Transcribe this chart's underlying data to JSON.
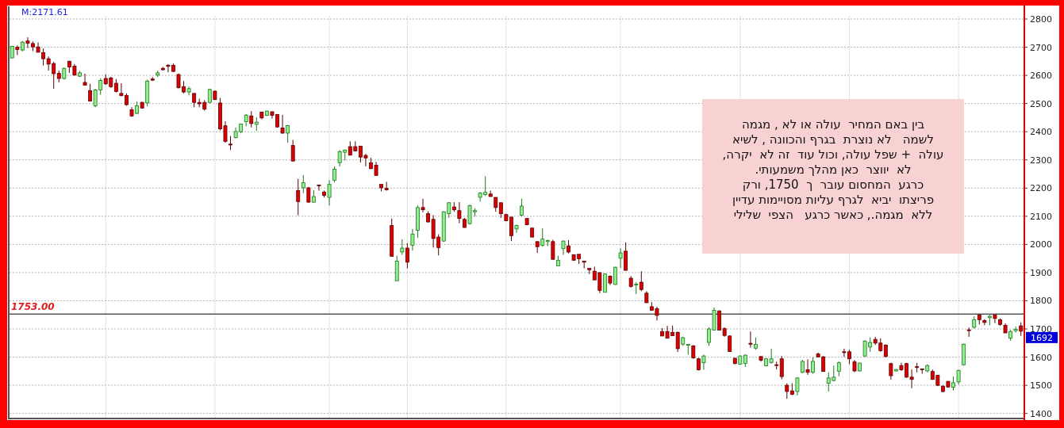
{
  "chart_data": {
    "type": "candlestick",
    "categories": [
      null,
      null,
      null,
      null,
      null,
      null,
      null,
      null,
      null,
      null,
      null,
      null,
      null,
      null,
      null,
      null,
      null,
      null,
      null,
      null,
      null,
      null,
      null,
      null,
      null,
      null,
      null,
      null,
      null,
      null,
      null,
      null,
      null,
      null,
      null,
      null,
      null,
      null,
      null,
      null,
      null,
      null,
      null,
      null,
      null,
      null,
      null,
      null,
      null,
      null,
      null,
      null,
      null,
      null,
      null,
      null,
      null,
      null,
      null,
      null,
      null,
      null,
      null,
      null,
      null,
      null,
      null,
      null,
      null,
      null,
      null,
      null,
      null,
      null,
      null,
      null,
      null,
      null,
      null,
      null,
      null,
      null,
      null,
      null,
      null,
      null,
      null,
      null,
      null,
      null,
      null,
      null,
      null,
      null,
      null,
      null,
      null,
      null,
      null,
      null,
      null,
      null,
      null,
      null,
      null,
      null,
      null,
      null,
      null,
      null,
      null,
      null,
      null,
      null,
      null,
      null,
      null,
      null,
      null,
      null,
      null,
      null,
      null,
      null,
      null,
      null,
      null,
      null,
      null,
      null,
      null,
      null,
      null,
      null,
      null,
      null,
      null,
      null,
      null,
      null,
      null,
      null,
      null,
      null,
      null,
      null,
      null,
      null,
      null,
      null,
      null,
      null,
      null,
      null,
      null,
      null,
      null,
      null,
      null,
      null,
      null,
      null,
      null,
      null,
      null,
      null,
      null,
      null,
      null,
      null,
      null,
      null,
      null,
      null,
      null,
      null,
      null,
      null,
      null,
      null,
      null,
      null,
      null,
      null,
      null,
      null,
      null,
      null,
      null,
      null,
      null,
      null,
      null,
      null,
      null
    ],
    "ohlc": [
      [
        2662,
        2705,
        2660,
        2703
      ],
      [
        2700,
        2706,
        2672,
        2692
      ],
      [
        2690,
        2722,
        2685,
        2718
      ],
      [
        2722,
        2735,
        2697,
        2714
      ],
      [
        2713,
        2720,
        2686,
        2701
      ],
      [
        2701,
        2717,
        2682,
        2682
      ],
      [
        2681,
        2696,
        2635,
        2659
      ],
      [
        2659,
        2667,
        2617,
        2640
      ],
      [
        2642,
        2648,
        2552,
        2606
      ],
      [
        2607,
        2617,
        2575,
        2589
      ],
      [
        2589,
        2628,
        2585,
        2625
      ],
      [
        2650,
        2652,
        2609,
        2630
      ],
      [
        2633,
        2640,
        2599,
        2601
      ],
      [
        2597,
        2616,
        2594,
        2609
      ],
      [
        2575,
        2606,
        2565,
        2565
      ],
      [
        2546,
        2570,
        2507,
        2509
      ],
      [
        2492,
        2552,
        2487,
        2548
      ],
      [
        2548,
        2589,
        2531,
        2582
      ],
      [
        2589,
        2604,
        2566,
        2570
      ],
      [
        2591,
        2595,
        2556,
        2560
      ],
      [
        2572,
        2587,
        2539,
        2543
      ],
      [
        2536,
        2572,
        2526,
        2528
      ],
      [
        2529,
        2536,
        2492,
        2496
      ],
      [
        2478,
        2487,
        2453,
        2456
      ],
      [
        2465,
        2507,
        2463,
        2492
      ],
      [
        2504,
        2507,
        2482,
        2484
      ],
      [
        2502,
        2585,
        2490,
        2580
      ],
      [
        2587,
        2594,
        2580,
        2583
      ],
      [
        2601,
        2617,
        2594,
        2609
      ],
      [
        2625,
        2630,
        2617,
        2620
      ],
      [
        2636,
        2640,
        2611,
        2632
      ],
      [
        2636,
        2642,
        2612,
        2614
      ],
      [
        2603,
        2607,
        2554,
        2556
      ],
      [
        2560,
        2580,
        2536,
        2541
      ],
      [
        2541,
        2560,
        2529,
        2553
      ],
      [
        2536,
        2536,
        2487,
        2504
      ],
      [
        2504,
        2517,
        2487,
        2499
      ],
      [
        2504,
        2512,
        2475,
        2480
      ],
      [
        2504,
        2553,
        2501,
        2550
      ],
      [
        2544,
        2546,
        2513,
        2514
      ],
      [
        2502,
        2520,
        2405,
        2410
      ],
      [
        2421,
        2437,
        2361,
        2366
      ],
      [
        2356,
        2385,
        2335,
        2353
      ],
      [
        2379,
        2415,
        2376,
        2401
      ],
      [
        2400,
        2429,
        2395,
        2427
      ],
      [
        2436,
        2463,
        2419,
        2459
      ],
      [
        2456,
        2473,
        2415,
        2429
      ],
      [
        2426,
        2451,
        2403,
        2434
      ],
      [
        2470,
        2470,
        2444,
        2449
      ],
      [
        2458,
        2475,
        2456,
        2473
      ],
      [
        2471,
        2471,
        2447,
        2458
      ],
      [
        2461,
        2463,
        2414,
        2417
      ],
      [
        2413,
        2460,
        2393,
        2395
      ],
      [
        2395,
        2424,
        2361,
        2422
      ],
      [
        2351,
        2371,
        2295,
        2296
      ],
      [
        2191,
        2233,
        2104,
        2152
      ],
      [
        2201,
        2246,
        2182,
        2219
      ],
      [
        2201,
        2204,
        2148,
        2150
      ],
      [
        2150,
        2193,
        2148,
        2170
      ],
      [
        2211,
        2211,
        2191,
        2208
      ],
      [
        2186,
        2191,
        2167,
        2174
      ],
      [
        2167,
        2228,
        2138,
        2213
      ],
      [
        2228,
        2277,
        2220,
        2267
      ],
      [
        2290,
        2335,
        2277,
        2329
      ],
      [
        2327,
        2337,
        2298,
        2335
      ],
      [
        2347,
        2366,
        2315,
        2317
      ],
      [
        2347,
        2366,
        2330,
        2332
      ],
      [
        2349,
        2349,
        2291,
        2310
      ],
      [
        2316,
        2322,
        2277,
        2307
      ],
      [
        2290,
        2307,
        2267,
        2269
      ],
      [
        2281,
        2293,
        2243,
        2245
      ],
      [
        2213,
        2213,
        2188,
        2201
      ],
      [
        2199,
        2222,
        2191,
        2194
      ],
      [
        2067,
        2092,
        1958,
        1958
      ],
      [
        1871,
        1960,
        1871,
        1941
      ],
      [
        1973,
        2018,
        1963,
        1987
      ],
      [
        1987,
        2004,
        1915,
        1937
      ],
      [
        1997,
        2055,
        1978,
        2036
      ],
      [
        2050,
        2138,
        2024,
        2131
      ],
      [
        2131,
        2162,
        2114,
        2123
      ],
      [
        2109,
        2118,
        2077,
        2080
      ],
      [
        2089,
        2104,
        1989,
        2021
      ],
      [
        2026,
        2036,
        1961,
        1989
      ],
      [
        2012,
        2118,
        2009,
        2116
      ],
      [
        2109,
        2150,
        2094,
        2148
      ],
      [
        2133,
        2150,
        2116,
        2123
      ],
      [
        2120,
        2150,
        2075,
        2092
      ],
      [
        2089,
        2094,
        2060,
        2060
      ],
      [
        2074,
        2141,
        2070,
        2138
      ],
      [
        2116,
        2128,
        2099,
        2120
      ],
      [
        2167,
        2186,
        2152,
        2182
      ],
      [
        2177,
        2242,
        2172,
        2185
      ],
      [
        2179,
        2191,
        2170,
        2170
      ],
      [
        2167,
        2167,
        2116,
        2131
      ],
      [
        2148,
        2148,
        2094,
        2109
      ],
      [
        2106,
        2109,
        2082,
        2084
      ],
      [
        2097,
        2097,
        2012,
        2031
      ],
      [
        2055,
        2070,
        2041,
        2067
      ],
      [
        2104,
        2162,
        2099,
        2136
      ],
      [
        2092,
        2094,
        2068,
        2070
      ],
      [
        2058,
        2058,
        2026,
        2026
      ],
      [
        2010,
        2010,
        1970,
        1992
      ],
      [
        1997,
        2057,
        1992,
        2019
      ],
      [
        2010,
        2017,
        1994,
        2014
      ],
      [
        2010,
        2017,
        1947,
        1947
      ],
      [
        1924,
        1960,
        1924,
        1944
      ],
      [
        1985,
        2014,
        1963,
        2012
      ],
      [
        1995,
        2015,
        1968,
        1973
      ],
      [
        1963,
        1965,
        1942,
        1944
      ],
      [
        1965,
        1965,
        1931,
        1949
      ],
      [
        1941,
        1941,
        1915,
        1937
      ],
      [
        1915,
        1915,
        1895,
        1910
      ],
      [
        1905,
        1921,
        1874,
        1874
      ],
      [
        1900,
        1900,
        1827,
        1837
      ],
      [
        1830,
        1897,
        1830,
        1895
      ],
      [
        1887,
        1890,
        1856,
        1863
      ],
      [
        1858,
        1921,
        1856,
        1919
      ],
      [
        1951,
        1987,
        1917,
        1970
      ],
      [
        1976,
        2007,
        1908,
        1908
      ],
      [
        1880,
        1888,
        1847,
        1851
      ],
      [
        1856,
        1866,
        1824,
        1859
      ],
      [
        1866,
        1905,
        1834,
        1840
      ],
      [
        1827,
        1834,
        1793,
        1793
      ],
      [
        1779,
        1795,
        1766,
        1766
      ],
      [
        1772,
        1779,
        1730,
        1748
      ],
      [
        1691,
        1703,
        1675,
        1675
      ],
      [
        1691,
        1711,
        1667,
        1667
      ],
      [
        1688,
        1712,
        1675,
        1676
      ],
      [
        1688,
        1691,
        1618,
        1630
      ],
      [
        1646,
        1672,
        1640,
        1669
      ],
      [
        1642,
        1646,
        1609,
        1645
      ],
      [
        1640,
        1643,
        1594,
        1597
      ],
      [
        1594,
        1597,
        1552,
        1555
      ],
      [
        1580,
        1609,
        1555,
        1604
      ],
      [
        1652,
        1706,
        1640,
        1700
      ],
      [
        1696,
        1776,
        1696,
        1766
      ],
      [
        1764,
        1766,
        1696,
        1696
      ],
      [
        1701,
        1706,
        1672,
        1677
      ],
      [
        1675,
        1677,
        1620,
        1620
      ],
      [
        1596,
        1598,
        1575,
        1577
      ],
      [
        1575,
        1606,
        1573,
        1604
      ],
      [
        1578,
        1609,
        1565,
        1607
      ],
      [
        1649,
        1691,
        1634,
        1646
      ],
      [
        1632,
        1670,
        1626,
        1645
      ],
      [
        1602,
        1604,
        1584,
        1589
      ],
      [
        1569,
        1596,
        1567,
        1594
      ],
      [
        1581,
        1630,
        1577,
        1594
      ],
      [
        1573,
        1584,
        1556,
        1571
      ],
      [
        1594,
        1604,
        1521,
        1531
      ],
      [
        1500,
        1507,
        1452,
        1478
      ],
      [
        1480,
        1507,
        1465,
        1468
      ],
      [
        1478,
        1529,
        1464,
        1526
      ],
      [
        1546,
        1590,
        1543,
        1585
      ],
      [
        1555,
        1592,
        1537,
        1546
      ],
      [
        1546,
        1599,
        1541,
        1585
      ],
      [
        1611,
        1616,
        1599,
        1601
      ],
      [
        1601,
        1604,
        1548,
        1549
      ],
      [
        1507,
        1546,
        1478,
        1526
      ],
      [
        1517,
        1570,
        1514,
        1529
      ],
      [
        1550,
        1585,
        1532,
        1580
      ],
      [
        1619,
        1630,
        1601,
        1616
      ],
      [
        1619,
        1626,
        1575,
        1594
      ],
      [
        1583,
        1590,
        1547,
        1551
      ],
      [
        1551,
        1580,
        1549,
        1579
      ],
      [
        1604,
        1660,
        1600,
        1657
      ],
      [
        1636,
        1670,
        1619,
        1652
      ],
      [
        1663,
        1672,
        1643,
        1650
      ],
      [
        1650,
        1667,
        1619,
        1623
      ],
      [
        1643,
        1645,
        1600,
        1602
      ],
      [
        1577,
        1580,
        1520,
        1534
      ],
      [
        1551,
        1558,
        1549,
        1556
      ],
      [
        1570,
        1580,
        1551,
        1555
      ],
      [
        1577,
        1580,
        1526,
        1529
      ],
      [
        1529,
        1556,
        1490,
        1521
      ],
      [
        1566,
        1580,
        1546,
        1563
      ],
      [
        1558,
        1558,
        1541,
        1555
      ],
      [
        1551,
        1575,
        1546,
        1570
      ],
      [
        1549,
        1556,
        1519,
        1521
      ],
      [
        1536,
        1536,
        1497,
        1500
      ],
      [
        1497,
        1500,
        1475,
        1478
      ],
      [
        1514,
        1515,
        1491,
        1494
      ],
      [
        1493,
        1531,
        1481,
        1509
      ],
      [
        1512,
        1555,
        1503,
        1553
      ],
      [
        1573,
        1648,
        1570,
        1646
      ],
      [
        1697,
        1705,
        1672,
        1694
      ],
      [
        1706,
        1745,
        1701,
        1733
      ],
      [
        1750,
        1750,
        1716,
        1733
      ],
      [
        1730,
        1735,
        1713,
        1723
      ],
      [
        1740,
        1750,
        1713,
        1745
      ],
      [
        1750,
        1750,
        1721,
        1737
      ],
      [
        1733,
        1737,
        1711,
        1716
      ],
      [
        1713,
        1720,
        1685,
        1686
      ],
      [
        1667,
        1696,
        1658,
        1691
      ],
      [
        1694,
        1708,
        1687,
        1699
      ],
      [
        1711,
        1723,
        1675,
        1692
      ]
    ],
    "ylim": [
      1385,
      2845
    ],
    "yticks": [
      1400,
      1500,
      1600,
      1700,
      1800,
      1900,
      2000,
      2100,
      2200,
      2300,
      2400,
      2500,
      2600,
      2700,
      2800
    ],
    "grid": "y",
    "ref_lines": [
      {
        "axis": "y",
        "value": 1753,
        "label": "1753.00",
        "color": "#000000"
      }
    ],
    "annotations": [
      "M:2171.61",
      "בין באם המחיר  עולה או לא , מגמה\nלשמה   לא נוצרת  בגרף והכוונה , לשיא\nעולה  + שפל עולה, וכול עוד  זה לא  יקרה,\nלא  יווצר  כאן מהלך משמעותי.\nכרגע  המחסום עובר  ך  1750, ורק\nפריצתו  יביא  לגרף עליות מסויימות עדיין\nללא  מגמה., כאשר כרגע   הצפי  שלילי",
      "1692"
    ]
  }
}
